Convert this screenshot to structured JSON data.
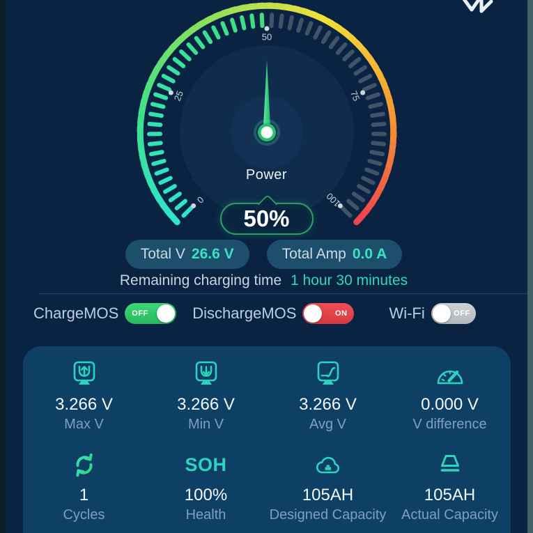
{
  "top_status_icon": "connection-icon",
  "gauge": {
    "title": "Power",
    "badge_text": "50%",
    "value_percent": 50,
    "min": 0,
    "max": 100,
    "axis_labels": [
      0,
      25,
      50,
      75,
      100
    ],
    "start_angle_deg": 225,
    "sweep_deg": 270,
    "tick_count": 56,
    "arc_gradient": [
      "#2de4cf",
      "#3fe08a",
      "#8ce05a",
      "#f2e03a",
      "#f59a31",
      "#ef4150"
    ],
    "active_tick_gradient": [
      "#2de4cf",
      "#3fdf7c"
    ],
    "inactive_tick_color": "#3f5467",
    "label_color": "#c6d3dc",
    "badge_border_color": "#2f9e63"
  },
  "totals": {
    "voltage": {
      "label": "Total V",
      "value": "26.6 V"
    },
    "current": {
      "label": "Total Amp",
      "value": "0.0 A"
    }
  },
  "remaining_time": {
    "label": "Remaining charging time",
    "value": "1 hour 30 minutes"
  },
  "switches": {
    "charge": {
      "label": "ChargeMOS",
      "state": "OFF",
      "color": "#2ecc71",
      "knob_side": "right"
    },
    "discharge": {
      "label": "DischargeMOS",
      "state": "ON",
      "color": "#e6444b",
      "knob_side": "left"
    },
    "wifi": {
      "label": "Wi-Fi",
      "state": "OFF",
      "color": "#c3c7cb",
      "knob_side": "left"
    }
  },
  "stats": [
    {
      "icon": "voltage-max-icon",
      "value": "3.266 V",
      "label": "Max V"
    },
    {
      "icon": "voltage-min-icon",
      "value": "3.266 V",
      "label": "Min V"
    },
    {
      "icon": "voltage-avg-icon",
      "value": "3.266 V",
      "label": "Avg V"
    },
    {
      "icon": "speedometer-icon",
      "value": "0.000 V",
      "label": "V difference"
    },
    {
      "icon": "cycle-arrows-icon",
      "value": "1",
      "label": "Cycles"
    },
    {
      "icon": "soh-text-icon",
      "icon_text": "SOH",
      "value": "100%",
      "label": "Health"
    },
    {
      "icon": "cloud-battery-icon",
      "value": "105AH",
      "label": "Designed Capacity"
    },
    {
      "icon": "capacity-trapezoid-icon",
      "value": "105AH",
      "label": "Actual Capacity"
    }
  ],
  "colors": {
    "background": "#0a2342",
    "card": "#0e4066",
    "pill": "#1d4e6c",
    "accent_teal": "#2dd3bd",
    "value_text": "#f4f8fb",
    "label_text": "#7f9fc0"
  }
}
